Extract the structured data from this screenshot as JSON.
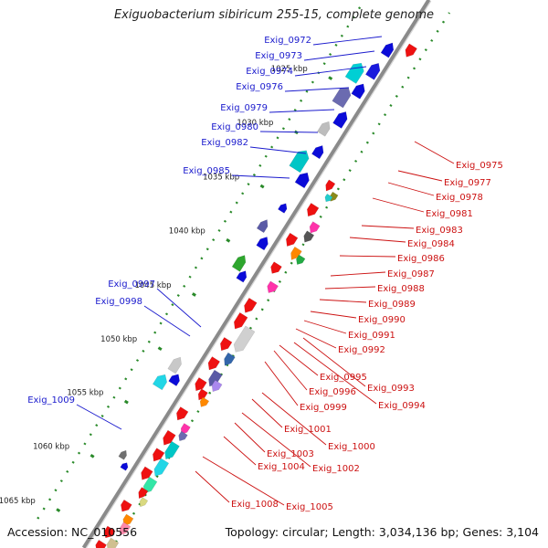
{
  "title": "Exiguobacterium sibiricum 255-15, complete genome",
  "footer": {
    "accession": "Accession: NC_010556",
    "topology": "Topology: circular; Length: 3,034,136 bp; Genes: 3,104"
  },
  "colors": {
    "forward_gene": "#0b0bd8",
    "reverse_gene": "#ee1111",
    "forward_label": "#1a1acd",
    "reverse_label": "#cc1111",
    "backbone": "#8a8a8a"
  },
  "kbp_ticks": [
    "1025 kbp",
    "1030 kbp",
    "1035 kbp",
    "1040 kbp",
    "1045 kbp",
    "1050 kbp",
    "1055 kbp",
    "1060 kbp",
    "1065 kbp"
  ],
  "forward_genes": [
    "Exig_0972",
    "Exig_0973",
    "Exig_0974",
    "Exig_0976",
    "Exig_0979",
    "Exig_0980",
    "Exig_0982",
    "Exig_0985",
    "Exig_0997",
    "Exig_0998",
    "Exig_1009"
  ],
  "reverse_genes": [
    "Exig_0975",
    "Exig_0977",
    "Exig_0978",
    "Exig_0981",
    "Exig_0983",
    "Exig_0984",
    "Exig_0986",
    "Exig_0987",
    "Exig_0988",
    "Exig_0989",
    "Exig_0990",
    "Exig_0991",
    "Exig_0992",
    "Exig_0993",
    "Exig_0994",
    "Exig_0995",
    "Exig_0996",
    "Exig_0999",
    "Exig_1000",
    "Exig_1001",
    "Exig_1002",
    "Exig_1003",
    "Exig_1004",
    "Exig_1005",
    "Exig_1008"
  ]
}
